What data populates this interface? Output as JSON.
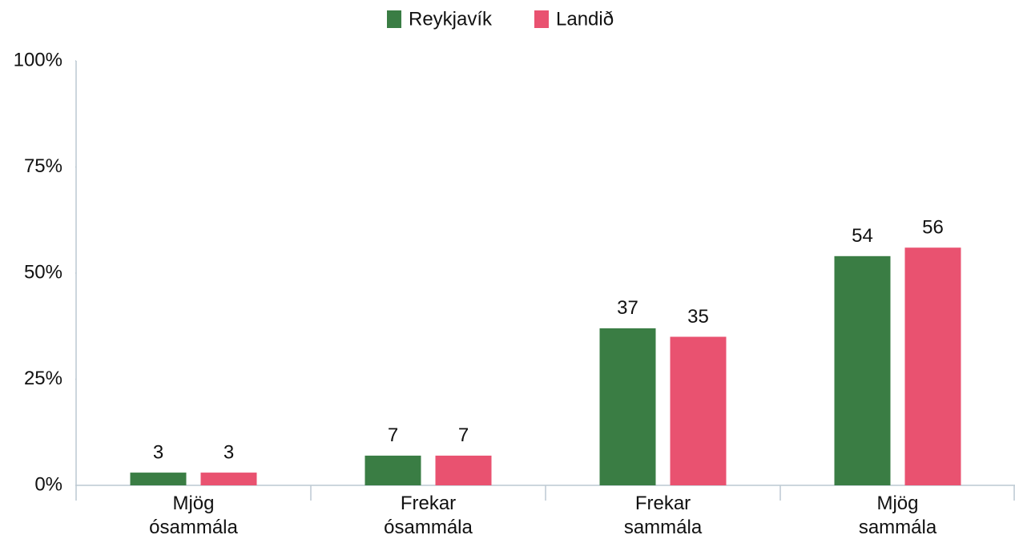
{
  "chart_data": {
    "type": "bar",
    "categories": [
      "Mjög ósammála",
      "Frekar ósammála",
      "Frekar sammála",
      "Mjög sammála"
    ],
    "series": [
      {
        "name": "Reykjavík",
        "color": "#3a7d44",
        "values": [
          3,
          7,
          37,
          54
        ]
      },
      {
        "name": "Landið",
        "color": "#e95270",
        "values": [
          3,
          7,
          35,
          56
        ]
      }
    ],
    "ylim": [
      0,
      100
    ],
    "yticks": [
      {
        "value": 0,
        "label": "0%"
      },
      {
        "value": 25,
        "label": "25%"
      },
      {
        "value": 50,
        "label": "50%"
      },
      {
        "value": 75,
        "label": "75%"
      },
      {
        "value": 100,
        "label": "100%"
      }
    ],
    "legend": "top"
  }
}
